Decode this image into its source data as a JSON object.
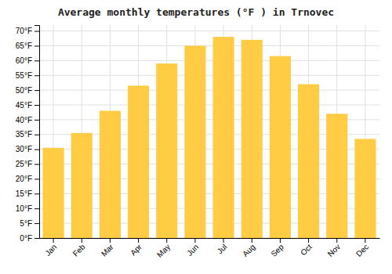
{
  "chart_data": {
    "type": "bar",
    "title": "Average monthly temperatures (°F ) in Trnovec",
    "categories": [
      "Jan",
      "Feb",
      "Mar",
      "Apr",
      "May",
      "Jun",
      "Jul",
      "Aug",
      "Sep",
      "Oct",
      "Nov",
      "Dec"
    ],
    "values": [
      30.5,
      35.5,
      43,
      51.5,
      59,
      65,
      68,
      67,
      61.5,
      52,
      42,
      33.5
    ],
    "color": "#FFCC44",
    "ylim": [
      0,
      72
    ],
    "yticks": [
      {
        "value": 0,
        "label": "0°F"
      },
      {
        "value": 5,
        "label": "5°F"
      },
      {
        "value": 10,
        "label": "10°F"
      },
      {
        "value": 15,
        "label": "15°F"
      },
      {
        "value": 20,
        "label": "20°F"
      },
      {
        "value": 25,
        "label": "25°F"
      },
      {
        "value": 30,
        "label": "30°F"
      },
      {
        "value": 35,
        "label": "35°F"
      },
      {
        "value": 40,
        "label": "40°F"
      },
      {
        "value": 45,
        "label": "45°F"
      },
      {
        "value": 50,
        "label": "50°F"
      },
      {
        "value": 55,
        "label": "55°F"
      },
      {
        "value": 60,
        "label": "60°F"
      },
      {
        "value": 65,
        "label": "65°F"
      },
      {
        "value": 70,
        "label": "70°F"
      }
    ],
    "grid": true
  }
}
